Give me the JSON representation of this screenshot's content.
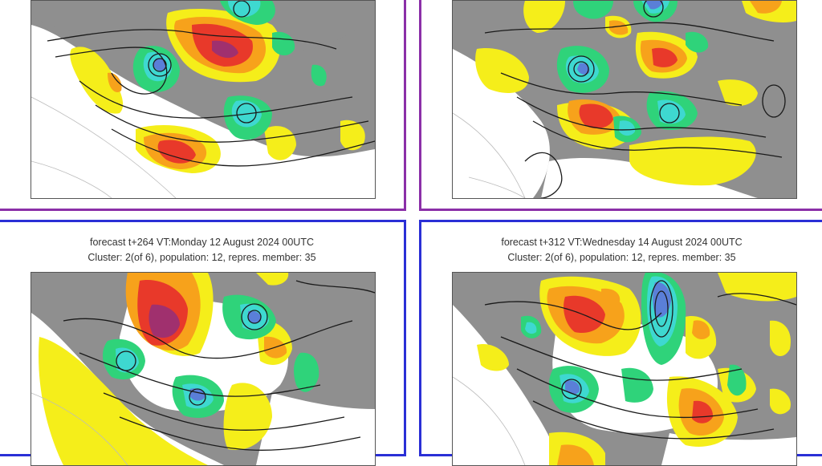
{
  "panels": [
    {
      "border_color": "#8b2fa8",
      "title": "",
      "subtitle": ""
    },
    {
      "border_color": "#8b2fa8",
      "title": "",
      "subtitle": ""
    },
    {
      "border_color": "#2a2fd6",
      "title": "forecast t+264 VT:Monday 12 August 2024 00UTC",
      "subtitle": "Cluster: 2(of 6), population: 12, repres. member: 35"
    },
    {
      "border_color": "#2a2fd6",
      "title": "forecast t+312 VT:Wednesday 14 August 2024 00UTC",
      "subtitle": "Cluster: 2(of 6), population: 12, repres. member: 35"
    }
  ],
  "colors": {
    "land": "#8f8f8f",
    "sea": "#ffffff",
    "anomaly_yellow": "#f5ee1a",
    "anomaly_orange": "#f7a21b",
    "anomaly_red": "#e8392a",
    "anomaly_magenta": "#a0306e",
    "anomaly_green": "#2fd37a",
    "anomaly_cyan": "#3ed8d0",
    "anomaly_blue": "#5a7fd8",
    "contour": "#1a1a1a"
  }
}
